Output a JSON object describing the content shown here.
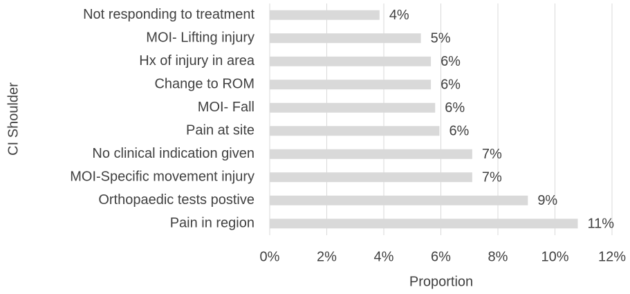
{
  "chart_data": {
    "type": "barh",
    "categories": [
      "Not responding to treatment",
      "MOI- Lifting injury",
      "Hx of injury in area",
      "Change to ROM",
      "MOI- Fall",
      "Pain at site",
      "No clinical indication given",
      "MOI-Specific movement injury",
      "Orthopaedic tests postive",
      "Pain in region"
    ],
    "values": [
      3.85,
      5.3,
      5.65,
      5.65,
      5.8,
      5.95,
      7.1,
      7.1,
      9.05,
      10.8
    ],
    "value_labels": [
      "4%",
      "5%",
      "6%",
      "6%",
      "6%",
      "6%",
      "7%",
      "7%",
      "9%",
      "11%"
    ],
    "color": "#d9d9d9",
    "xlim": [
      0,
      12
    ],
    "xticks": [
      {
        "value": 0,
        "label": "0%"
      },
      {
        "value": 2,
        "label": "2%"
      },
      {
        "value": 4,
        "label": "4%"
      },
      {
        "value": 6,
        "label": "6%"
      },
      {
        "value": 8,
        "label": "8%"
      },
      {
        "value": 10,
        "label": "10%"
      },
      {
        "value": 12,
        "label": "12%"
      }
    ],
    "xlabel": "Proportion",
    "ylabel": "CI Shoulder",
    "grid": true
  }
}
